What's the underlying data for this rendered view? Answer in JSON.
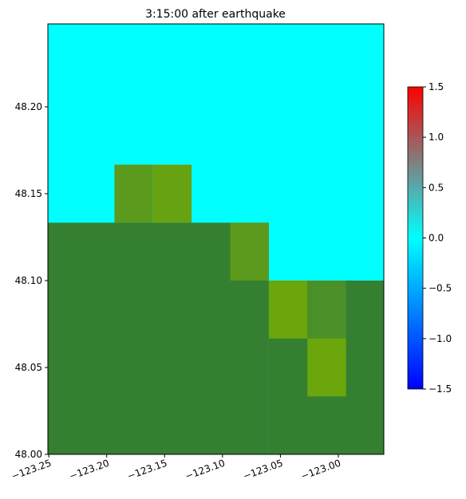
{
  "chart_data": {
    "type": "map-grid",
    "title": "3:15:00 after earthquake",
    "background": "#00ffff",
    "xlim": [
      -123.2508,
      -122.9607
    ],
    "ylim": [
      48.0,
      48.2477
    ],
    "xticks": [
      {
        "value": -123.25,
        "label": "−123.25"
      },
      {
        "value": -123.2,
        "label": "−123.20"
      },
      {
        "value": -123.15,
        "label": "−123.15"
      },
      {
        "value": -123.1,
        "label": "−123.10"
      },
      {
        "value": -123.05,
        "label": "−123.05"
      },
      {
        "value": -123.0,
        "label": "−123.00"
      }
    ],
    "yticks": [
      {
        "value": 48.0,
        "label": "48.00"
      },
      48.05,
      {
        "value": 48.1,
        "label": "48.10"
      },
      48.15,
      {
        "value": 48.2,
        "label": "48.20"
      }
    ],
    "cells": [
      {
        "x": [
          -123.2508,
          -123.06
        ],
        "y": [
          48.0,
          48.1333
        ],
        "color": "#357f31"
      },
      {
        "x": [
          -123.06,
          -122.9607
        ],
        "y": [
          48.0,
          48.1
        ],
        "color": "#357f31"
      },
      {
        "x": [
          -123.0933,
          -123.06
        ],
        "y": [
          48.1,
          48.1333
        ],
        "color": "#5b9a1c"
      },
      {
        "x": [
          -123.1933,
          -123.16
        ],
        "y": [
          48.1333,
          48.1667
        ],
        "color": "#5b9a1c"
      },
      {
        "x": [
          -123.16,
          -123.1267
        ],
        "y": [
          48.1333,
          48.1667
        ],
        "color": "#66a212"
      },
      {
        "x": [
          -123.06,
          -123.0267
        ],
        "y": [
          48.0667,
          48.1
        ],
        "color": "#6aa60c"
      },
      {
        "x": [
          -123.0267,
          -122.9933
        ],
        "y": [
          48.0667,
          48.1
        ],
        "color": "#4a8f28"
      },
      {
        "x": [
          -123.0267,
          -122.9933
        ],
        "y": [
          48.0333,
          48.0667
        ],
        "color": "#6aa60c"
      }
    ],
    "colorbar": {
      "lim": [
        -1.5,
        1.5
      ],
      "ticks": [
        {
          "value": -1.5,
          "label": "−1.5"
        },
        {
          "value": -1.0,
          "label": "−1.0"
        },
        {
          "value": -0.5,
          "label": "−0.5"
        },
        {
          "value": 0,
          "label": "0.0"
        },
        0.5,
        {
          "value": 1.0,
          "label": "1.0"
        },
        1.5
      ],
      "stops": [
        {
          "value": -1.5,
          "color": "#0000ff"
        },
        {
          "value": 0,
          "color": "#00ffff"
        },
        {
          "value": 0.75,
          "color": "#808080"
        },
        {
          "value": 1.5,
          "color": "#ff0000"
        }
      ]
    }
  }
}
